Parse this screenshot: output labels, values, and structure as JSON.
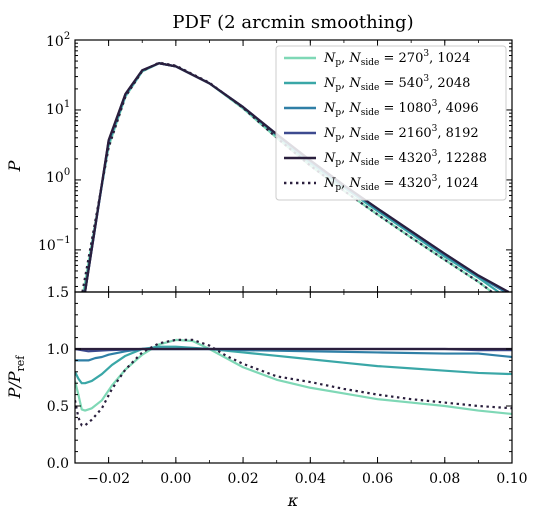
{
  "chart_data": [
    {
      "type": "line",
      "title": "PDF (2 arcmin smoothing)",
      "xlabel": "",
      "ylabel": "P",
      "xlim": [
        -0.03,
        0.1
      ],
      "ylim": [
        0.025,
        100
      ],
      "yscale": "log",
      "ytick_labels": [
        "10^2",
        "10^1",
        "10^0",
        "10^-1"
      ],
      "legend_position": "upper right",
      "series": [
        {
          "name": "N_p, N_side = 270^3, 1024",
          "color": "#7fd8b6",
          "style": "solid",
          "x": [
            -0.0275,
            -0.02,
            -0.015,
            -0.01,
            -0.005,
            0.0,
            0.01,
            0.02,
            0.03,
            0.04,
            0.05,
            0.06,
            0.07,
            0.08,
            0.09,
            0.094
          ],
          "y": [
            0.025,
            3.0,
            15.5,
            35.5,
            46.5,
            42.0,
            24.0,
            10.5,
            4.0,
            1.6,
            0.7,
            0.32,
            0.15,
            0.072,
            0.035,
            0.025
          ]
        },
        {
          "name": "N_p, N_side = 540^3, 2048",
          "color": "#3aa7a7",
          "style": "solid",
          "x": [
            -0.0272,
            -0.02,
            -0.015,
            -0.01,
            -0.005,
            0.0,
            0.01,
            0.02,
            0.03,
            0.04,
            0.05,
            0.06,
            0.07,
            0.08,
            0.09,
            0.096
          ],
          "y": [
            0.025,
            3.3,
            16.0,
            36.0,
            46.5,
            42.0,
            24.0,
            10.8,
            4.3,
            1.75,
            0.78,
            0.36,
            0.17,
            0.08,
            0.04,
            0.025
          ]
        },
        {
          "name": "N_p, N_side = 1080^3, 4096",
          "color": "#2f7fa6",
          "style": "solid",
          "x": [
            -0.027,
            -0.02,
            -0.015,
            -0.01,
            -0.005,
            0.0,
            0.01,
            0.02,
            0.03,
            0.04,
            0.05,
            0.06,
            0.07,
            0.08,
            0.09,
            0.098
          ],
          "y": [
            0.025,
            3.5,
            16.5,
            36.5,
            46.5,
            42.0,
            24.0,
            11.0,
            4.5,
            1.85,
            0.82,
            0.38,
            0.18,
            0.085,
            0.042,
            0.025
          ]
        },
        {
          "name": "N_p, N_side = 2160^3, 8192",
          "color": "#3d4a8f",
          "style": "solid",
          "x": [
            -0.027,
            -0.02,
            -0.015,
            -0.01,
            -0.005,
            0.0,
            0.01,
            0.02,
            0.03,
            0.04,
            0.05,
            0.06,
            0.07,
            0.08,
            0.09,
            0.099
          ],
          "y": [
            0.025,
            3.6,
            16.8,
            37.0,
            46.5,
            42.0,
            24.0,
            11.0,
            4.5,
            1.9,
            0.84,
            0.39,
            0.185,
            0.088,
            0.043,
            0.025
          ]
        },
        {
          "name": "N_p, N_side = 4320^3, 12288",
          "color": "#2a1f3d",
          "style": "solid",
          "x": [
            -0.027,
            -0.02,
            -0.015,
            -0.01,
            -0.005,
            0.0,
            0.01,
            0.02,
            0.03,
            0.04,
            0.05,
            0.06,
            0.07,
            0.08,
            0.09,
            0.099
          ],
          "y": [
            0.025,
            3.7,
            17.0,
            37.0,
            46.5,
            42.0,
            24.0,
            11.0,
            4.5,
            1.9,
            0.84,
            0.39,
            0.185,
            0.088,
            0.043,
            0.025
          ]
        },
        {
          "name": "N_p, N_side = 4320^3, 1024",
          "color": "#2a1f3d",
          "style": "dotted",
          "x": [
            -0.0278,
            -0.02,
            -0.015,
            -0.01,
            -0.005,
            0.0,
            0.01,
            0.02,
            0.03,
            0.04,
            0.05,
            0.06,
            0.07,
            0.08,
            0.09,
            0.094
          ],
          "y": [
            0.025,
            2.9,
            15.5,
            36.0,
            47.5,
            43.0,
            24.5,
            10.7,
            4.0,
            1.6,
            0.7,
            0.32,
            0.15,
            0.072,
            0.035,
            0.025
          ]
        }
      ]
    },
    {
      "type": "line",
      "xlabel": "κ",
      "ylabel": "P/P_ref",
      "xlim": [
        -0.03,
        0.1
      ],
      "ylim": [
        0.0,
        1.5
      ],
      "x_ticks": [
        -0.02,
        0.0,
        0.02,
        0.04,
        0.06,
        0.08,
        0.1
      ],
      "x_tick_labels": [
        "−0.02",
        "0.00",
        "0.02",
        "0.04",
        "0.06",
        "0.08",
        "0.10"
      ],
      "y_ticks": [
        0.0,
        0.5,
        1.0,
        1.5
      ],
      "y_tick_labels": [
        "0.0",
        "0.5",
        "1.0",
        "1.5"
      ],
      "series": [
        {
          "name": "N_p, N_side = 270^3, 1024",
          "color": "#7fd8b6",
          "style": "solid",
          "x": [
            -0.03,
            -0.029,
            -0.028,
            -0.027,
            -0.025,
            -0.022,
            -0.019,
            -0.015,
            -0.01,
            -0.005,
            0.0,
            0.005,
            0.01,
            0.015,
            0.02,
            0.03,
            0.04,
            0.05,
            0.06,
            0.07,
            0.08,
            0.09,
            0.1
          ],
          "y": [
            0.72,
            0.6,
            0.47,
            0.46,
            0.48,
            0.55,
            0.68,
            0.82,
            0.95,
            1.04,
            1.08,
            1.07,
            1.0,
            0.92,
            0.84,
            0.73,
            0.66,
            0.61,
            0.56,
            0.53,
            0.5,
            0.46,
            0.43
          ]
        },
        {
          "name": "N_p, N_side = 540^3, 2048",
          "color": "#3aa7a7",
          "style": "solid",
          "x": [
            -0.03,
            -0.029,
            -0.028,
            -0.027,
            -0.025,
            -0.022,
            -0.019,
            -0.015,
            -0.01,
            -0.005,
            0.0,
            0.01,
            0.02,
            0.03,
            0.04,
            0.05,
            0.06,
            0.07,
            0.08,
            0.09,
            0.1
          ],
          "y": [
            0.8,
            0.74,
            0.7,
            0.7,
            0.72,
            0.78,
            0.86,
            0.94,
            1.0,
            1.02,
            1.02,
            1.0,
            0.97,
            0.94,
            0.91,
            0.88,
            0.85,
            0.83,
            0.81,
            0.79,
            0.78
          ]
        },
        {
          "name": "N_p, N_side = 1080^3, 4096",
          "color": "#2f7fa6",
          "style": "solid",
          "x": [
            -0.03,
            -0.028,
            -0.026,
            -0.024,
            -0.022,
            -0.02,
            -0.015,
            -0.01,
            0.0,
            0.01,
            0.02,
            0.04,
            0.06,
            0.08,
            0.09,
            0.1
          ],
          "y": [
            0.9,
            0.9,
            0.9,
            0.92,
            0.93,
            0.95,
            0.98,
            1.0,
            1.0,
            1.0,
            0.99,
            0.98,
            0.97,
            0.96,
            0.96,
            0.93
          ]
        },
        {
          "name": "N_p, N_side = 2160^3, 8192",
          "color": "#3d4a8f",
          "style": "solid",
          "x": [
            -0.03,
            -0.026,
            -0.02,
            -0.01,
            0.0,
            0.02,
            0.04,
            0.06,
            0.08,
            0.09,
            0.1
          ],
          "y": [
            1.0,
            0.98,
            0.99,
            1.0,
            1.0,
            1.0,
            1.0,
            1.0,
            1.0,
            0.99,
            0.99
          ]
        },
        {
          "name": "N_p, N_side = 4320^3, 12288",
          "color": "#2a1f3d",
          "style": "solid",
          "x": [
            -0.03,
            0.1
          ],
          "y": [
            1.0,
            1.0
          ]
        },
        {
          "name": "N_p, N_side = 4320^3, 1024",
          "color": "#2a1f3d",
          "style": "dotted",
          "x": [
            -0.03,
            -0.029,
            -0.028,
            -0.027,
            -0.025,
            -0.022,
            -0.019,
            -0.015,
            -0.01,
            -0.005,
            0.0,
            0.005,
            0.01,
            0.015,
            0.02,
            0.03,
            0.04,
            0.05,
            0.06,
            0.07,
            0.08,
            0.09,
            0.1
          ],
          "y": [
            0.55,
            0.4,
            0.33,
            0.33,
            0.38,
            0.48,
            0.65,
            0.82,
            0.97,
            1.05,
            1.08,
            1.08,
            1.03,
            0.94,
            0.87,
            0.76,
            0.71,
            0.65,
            0.6,
            0.56,
            0.53,
            0.5,
            0.48
          ]
        }
      ]
    }
  ]
}
